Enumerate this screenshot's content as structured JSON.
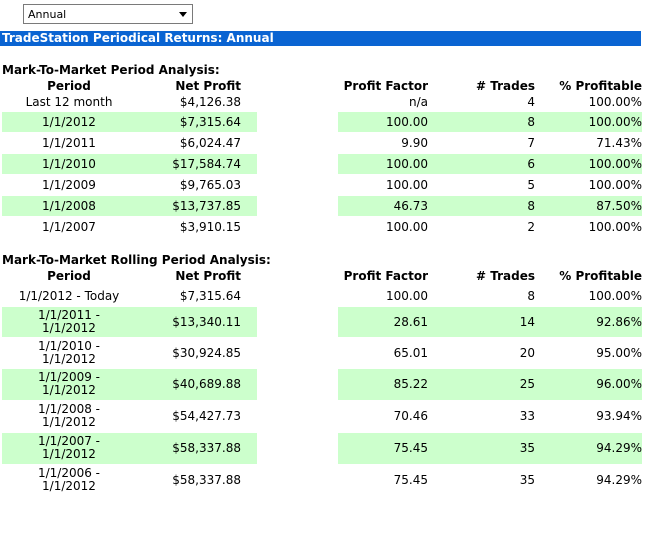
{
  "dropdown": {
    "value": "Annual"
  },
  "title": "TradeStation Periodical Returns: Annual",
  "headers": {
    "period": "Period",
    "net_profit": "Net Profit",
    "profit_factor": "Profit Factor",
    "trades": "# Trades",
    "pct_profitable": "% Profitable"
  },
  "section1": {
    "title": "Mark-To-Market Period Analysis:",
    "rows": [
      {
        "period": "Last 12 month",
        "net_profit": "$4,126.38",
        "profit_factor": "n/a",
        "trades": "4",
        "pct_profitable": "100.00%"
      },
      {
        "period": "1/1/2012",
        "net_profit": "$7,315.64",
        "profit_factor": "100.00",
        "trades": "8",
        "pct_profitable": "100.00%"
      },
      {
        "period": "1/1/2011",
        "net_profit": "$6,024.47",
        "profit_factor": "9.90",
        "trades": "7",
        "pct_profitable": "71.43%"
      },
      {
        "period": "1/1/2010",
        "net_profit": "$17,584.74",
        "profit_factor": "100.00",
        "trades": "6",
        "pct_profitable": "100.00%"
      },
      {
        "period": "1/1/2009",
        "net_profit": "$9,765.03",
        "profit_factor": "100.00",
        "trades": "5",
        "pct_profitable": "100.00%"
      },
      {
        "period": "1/1/2008",
        "net_profit": "$13,737.85",
        "profit_factor": "46.73",
        "trades": "8",
        "pct_profitable": "87.50%"
      },
      {
        "period": "1/1/2007",
        "net_profit": "$3,910.15",
        "profit_factor": "100.00",
        "trades": "2",
        "pct_profitable": "100.00%"
      }
    ]
  },
  "section2": {
    "title": "Mark-To-Market Rolling Period Analysis:",
    "first_row": {
      "period": "1/1/2012 - Today",
      "net_profit": "$7,315.64",
      "profit_factor": "100.00",
      "trades": "8",
      "pct_profitable": "100.00%"
    },
    "rows": [
      {
        "period_start": "1/1/2011 -",
        "period_end": "1/1/2012",
        "net_profit": "$13,340.11",
        "profit_factor": "28.61",
        "trades": "14",
        "pct_profitable": "92.86%"
      },
      {
        "period_start": "1/1/2010 -",
        "period_end": "1/1/2012",
        "net_profit": "$30,924.85",
        "profit_factor": "65.01",
        "trades": "20",
        "pct_profitable": "95.00%"
      },
      {
        "period_start": "1/1/2009 -",
        "period_end": "1/1/2012",
        "net_profit": "$40,689.88",
        "profit_factor": "85.22",
        "trades": "25",
        "pct_profitable": "96.00%"
      },
      {
        "period_start": "1/1/2008 -",
        "period_end": "1/1/2012",
        "net_profit": "$54,427.73",
        "profit_factor": "70.46",
        "trades": "33",
        "pct_profitable": "93.94%"
      },
      {
        "period_start": "1/1/2007 -",
        "period_end": "1/1/2012",
        "net_profit": "$58,337.88",
        "profit_factor": "75.45",
        "trades": "35",
        "pct_profitable": "94.29%"
      },
      {
        "period_start": "1/1/2006 -",
        "period_end": "1/1/2012",
        "net_profit": "$58,337.88",
        "profit_factor": "75.45",
        "trades": "35",
        "pct_profitable": "94.29%"
      }
    ]
  }
}
